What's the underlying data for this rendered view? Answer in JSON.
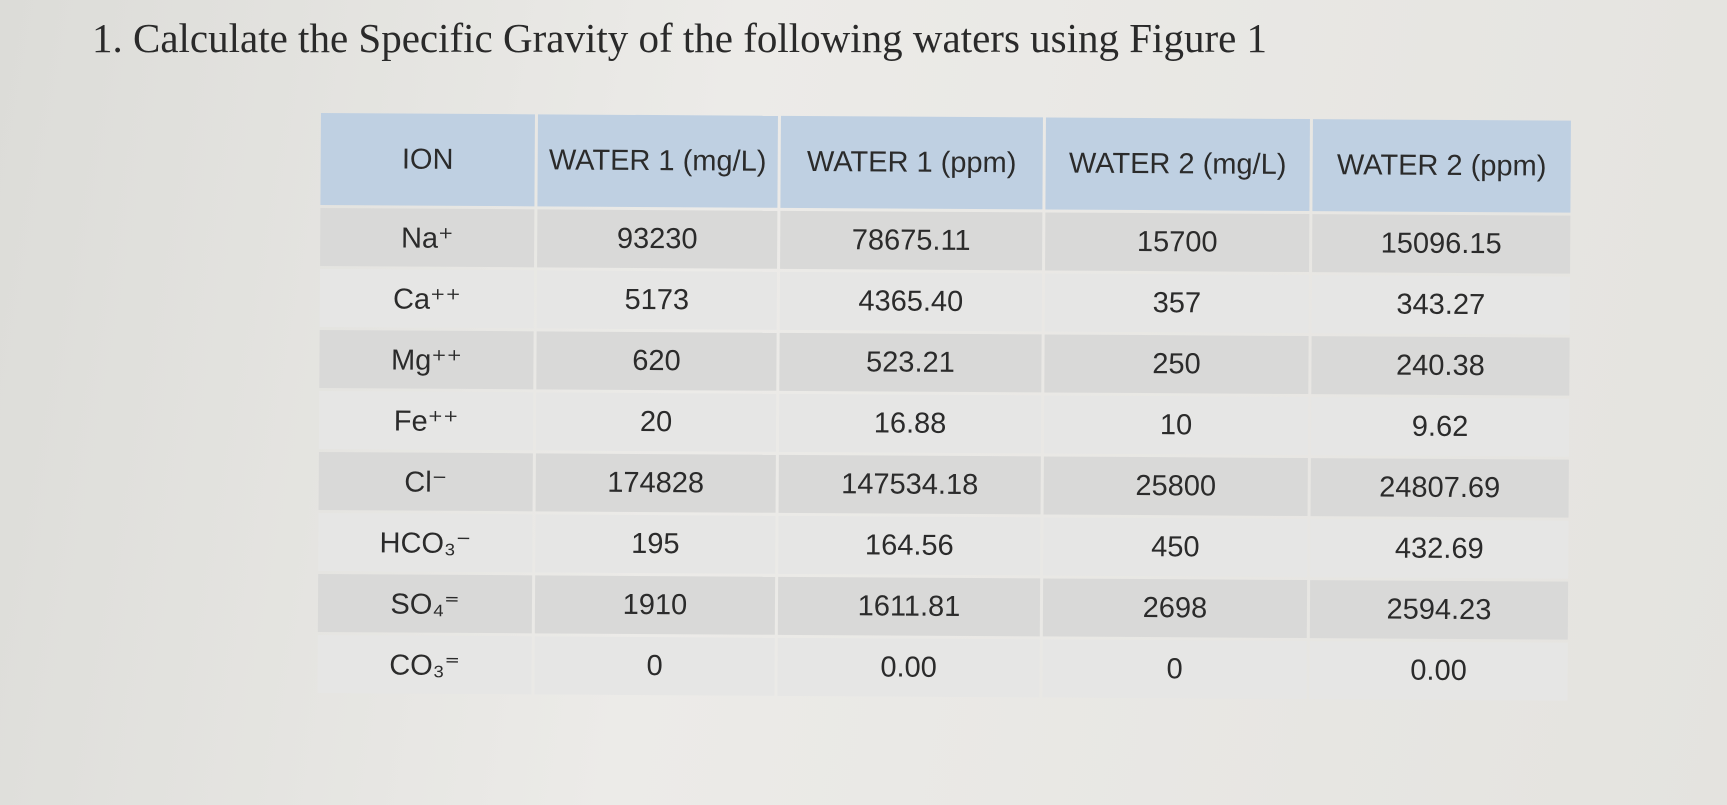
{
  "title": "1. Calculate the Specific Gravity of the following waters using Figure 1",
  "table": {
    "header": [
      "ION",
      "WATER 1 (mg/L)",
      "WATER 1 (ppm)",
      "WATER 2 (mg/L)",
      "WATER 2 (ppm)"
    ],
    "rows": [
      [
        "Na⁺",
        "93230",
        "78675.11",
        "15700",
        "15096.15"
      ],
      [
        "Ca⁺⁺",
        "5173",
        "4365.40",
        "357",
        "343.27"
      ],
      [
        "Mg⁺⁺",
        "620",
        "523.21",
        "250",
        "240.38"
      ],
      [
        "Fe⁺⁺",
        "20",
        "16.88",
        "10",
        "9.62"
      ],
      [
        "Cl⁻",
        "174828",
        "147534.18",
        "25800",
        "24807.69"
      ],
      [
        "HCO₃⁻",
        "195",
        "164.56",
        "450",
        "432.69"
      ],
      [
        "SO₄⁼",
        "1910",
        "1611.81",
        "2698",
        "2594.23"
      ],
      [
        "CO₃⁼",
        "0",
        "0.00",
        "0",
        "0.00"
      ]
    ]
  }
}
